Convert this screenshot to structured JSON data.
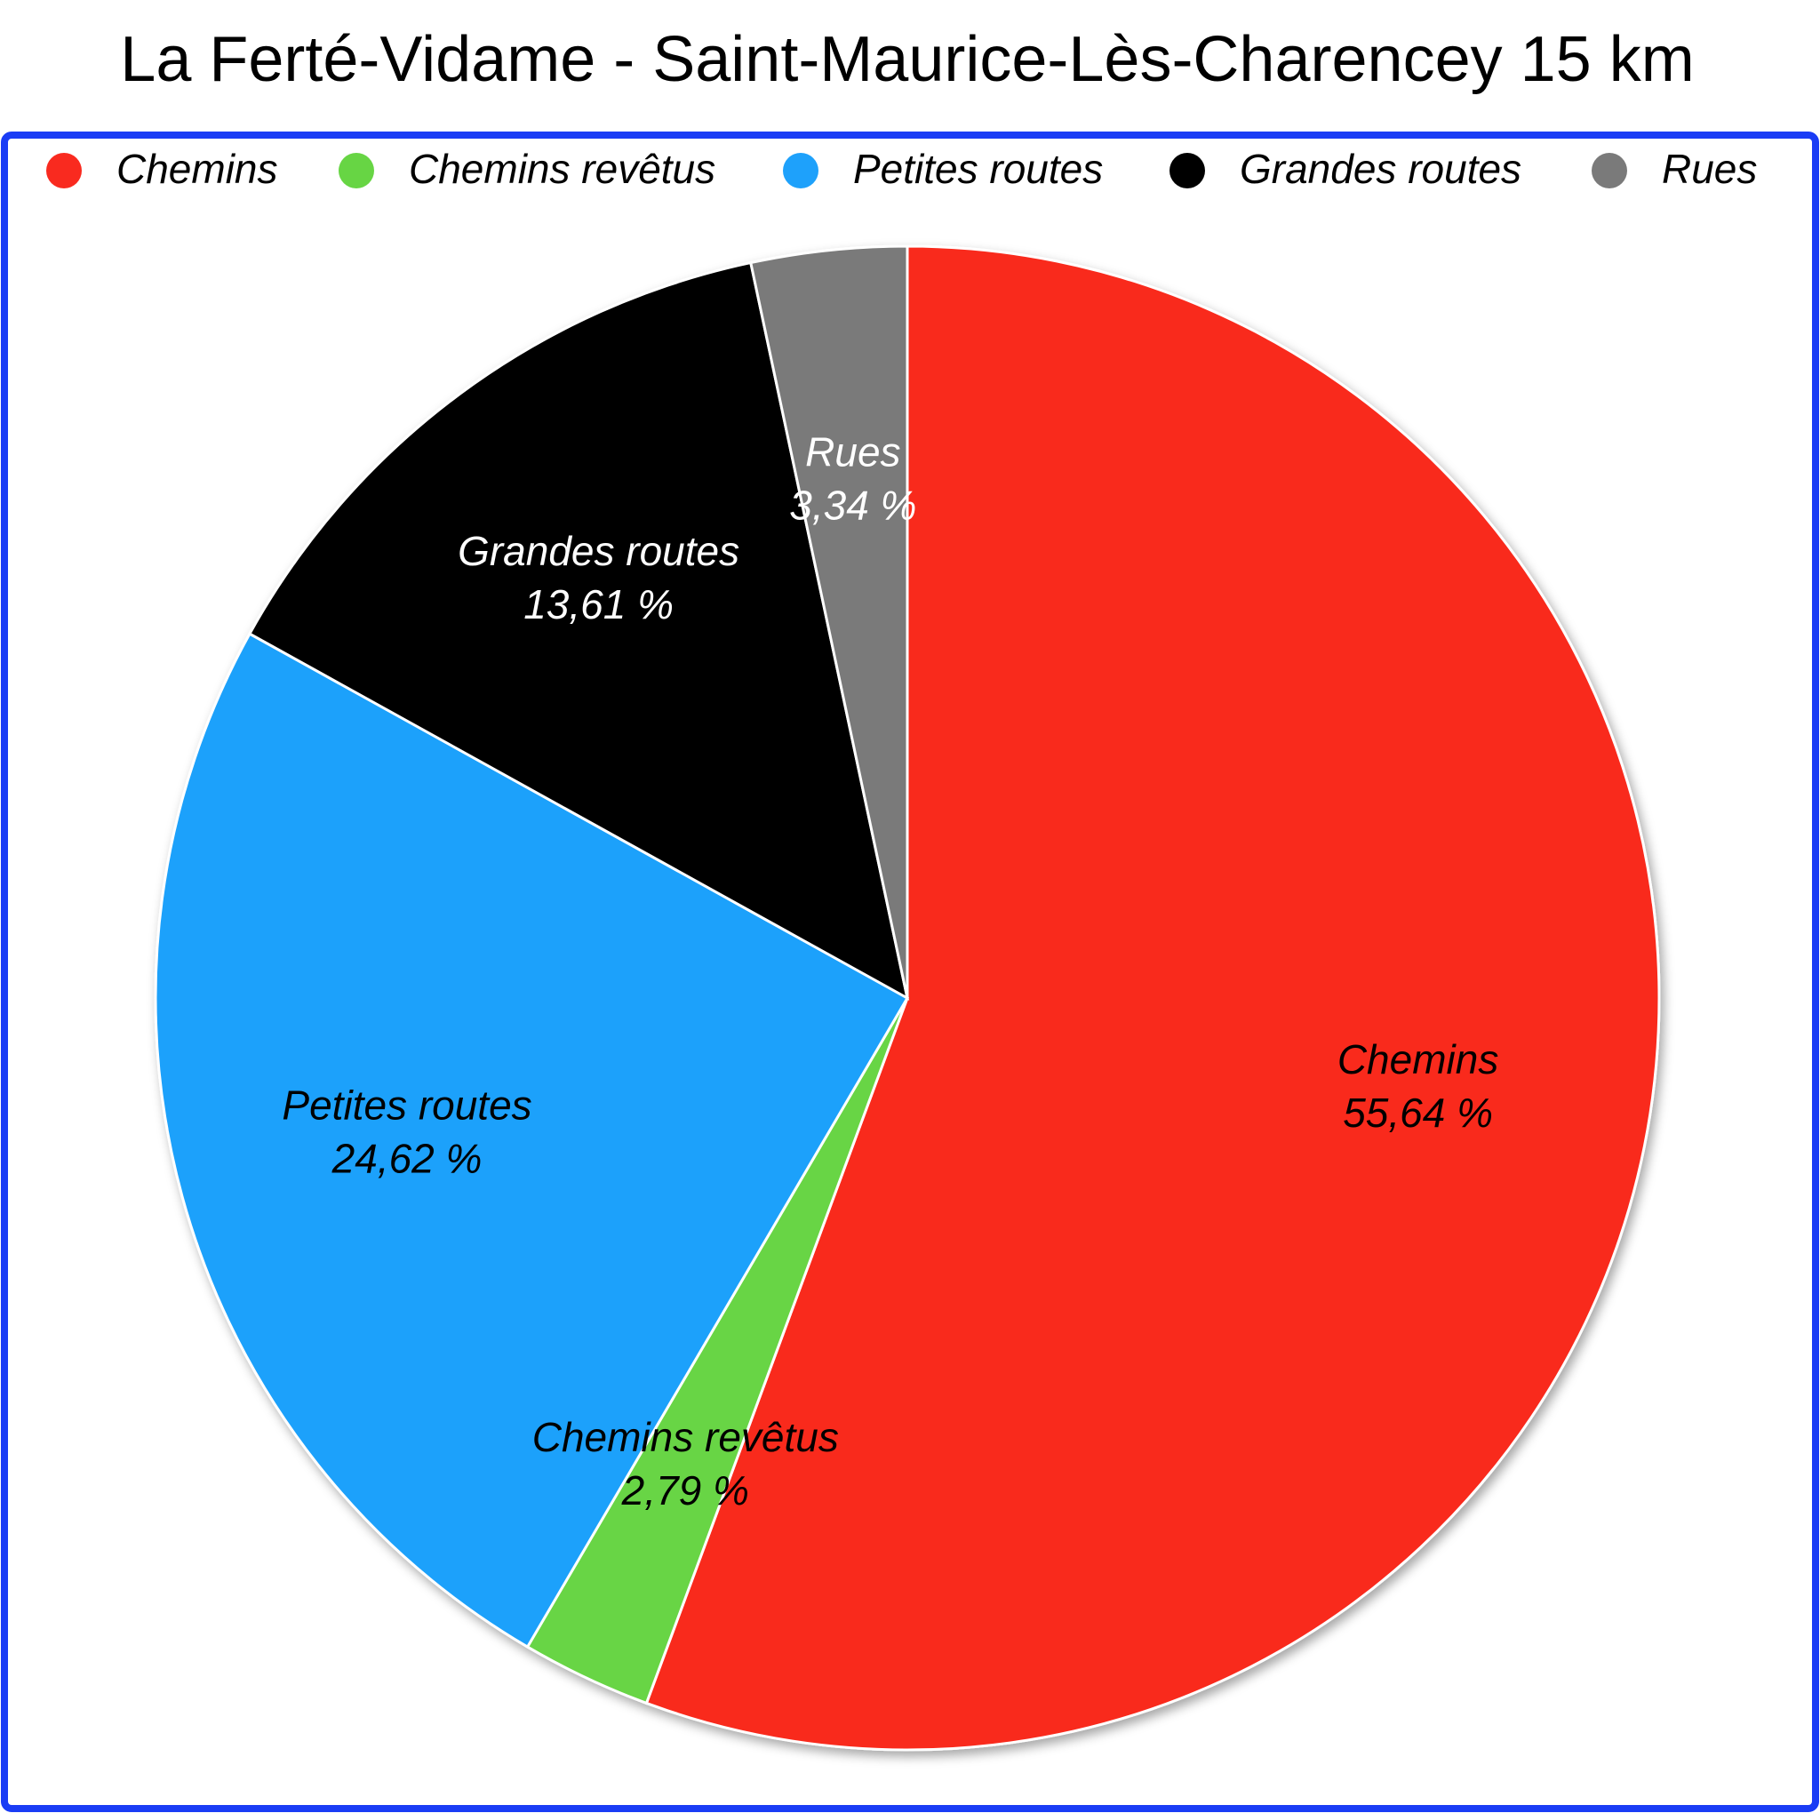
{
  "chart_data": {
    "type": "pie",
    "title": "La Ferté-Vidame - Saint-Maurice-Lès-Charencey 15 km",
    "categories": [
      "Chemins",
      "Chemins revêtus",
      "Petites routes",
      "Grandes routes",
      "Rues"
    ],
    "values": [
      55.64,
      2.79,
      24.62,
      13.61,
      3.34
    ],
    "value_labels": [
      "55,64 %",
      "2,79 %",
      "24,62 %",
      "13,61 %",
      "3,34 %"
    ],
    "colors": [
      "#f92a1f",
      "#67d544",
      "#1ea1fb",
      "#000000",
      "#7a7a7a"
    ],
    "label_colors": [
      "#000000",
      "#000000",
      "#000000",
      "#ffffff",
      "#ffffff"
    ],
    "legend": "top"
  }
}
